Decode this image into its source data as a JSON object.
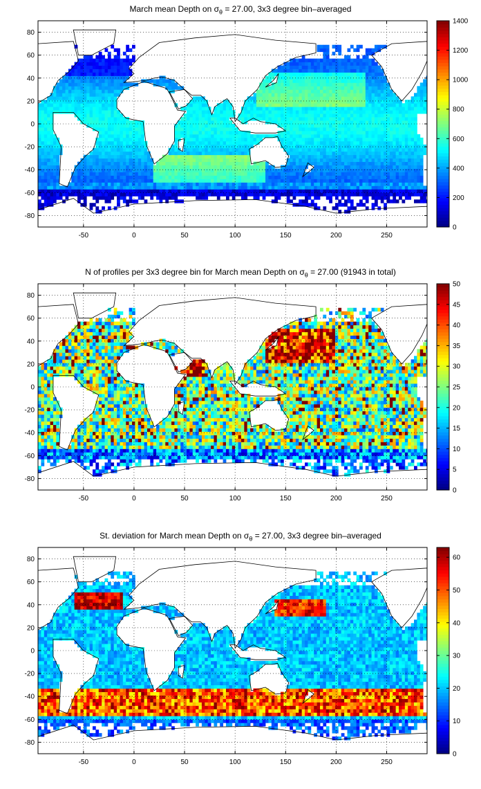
{
  "chart_data": [
    {
      "type": "heatmap",
      "title": "March mean Depth on σθ = 27.00, 3x3 degree bin–averaged",
      "title_parts": {
        "pre": "March mean Depth on σ",
        "sub": "θ",
        "post": " = 27.00, 3x3 degree bin–averaged"
      },
      "xlim": [
        -95,
        290
      ],
      "ylim": [
        -90,
        90
      ],
      "xticks": [
        -50,
        0,
        50,
        100,
        150,
        200,
        250
      ],
      "yticks": [
        -80,
        -60,
        -40,
        -20,
        0,
        20,
        40,
        60,
        80
      ],
      "grid": true,
      "colorbar": {
        "min": 0,
        "max": 1400,
        "ticks": [
          0,
          200,
          400,
          600,
          800,
          1000,
          1200,
          1400
        ],
        "colormap": "jet"
      },
      "field": "mean_depth"
    },
    {
      "type": "heatmap",
      "title": "N of profiles per 3x3 degree bin for March mean Depth on σθ = 27.00 (91943 in total)",
      "title_parts": {
        "pre": "N of profiles per 3x3 degree bin for March mean Depth on σ",
        "sub": "θ",
        "post": " = 27.00 (91943 in total)"
      },
      "xlim": [
        -95,
        290
      ],
      "ylim": [
        -90,
        90
      ],
      "xticks": [
        -50,
        0,
        50,
        100,
        150,
        200,
        250
      ],
      "yticks": [
        -80,
        -60,
        -40,
        -20,
        0,
        20,
        40,
        60,
        80
      ],
      "grid": true,
      "colorbar": {
        "min": 0,
        "max": 50,
        "ticks": [
          0,
          5,
          10,
          15,
          20,
          25,
          30,
          35,
          40,
          45,
          50
        ],
        "colormap": "jet"
      },
      "field": "profile_count"
    },
    {
      "type": "heatmap",
      "title": "St. deviation for March mean Depth on σθ = 27.00, 3x3 degree bin–averaged",
      "title_parts": {
        "pre": "St. deviation for March mean Depth on σ",
        "sub": "θ",
        "post": " = 27.00, 3x3 degree bin–averaged"
      },
      "xlim": [
        -95,
        290
      ],
      "ylim": [
        -90,
        90
      ],
      "xticks": [
        -50,
        0,
        50,
        100,
        150,
        200,
        250
      ],
      "yticks": [
        -80,
        -60,
        -40,
        -20,
        0,
        20,
        40,
        60,
        80
      ],
      "grid": true,
      "colorbar": {
        "min": 0,
        "max": 63,
        "ticks": [
          0,
          10,
          20,
          30,
          40,
          50,
          60
        ],
        "colormap": "jet"
      },
      "field": "std_depth"
    }
  ]
}
